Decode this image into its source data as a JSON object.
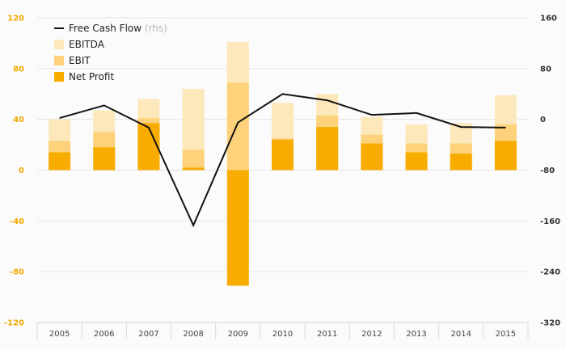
{
  "chart_data": {
    "type": "bar",
    "categories": [
      "2005",
      "2006",
      "2007",
      "2008",
      "2009",
      "2010",
      "2011",
      "2012",
      "2013",
      "2014",
      "2015"
    ],
    "series": [
      {
        "name": "EBITDA",
        "kind": "bar",
        "axis": "left",
        "color": "#fde8bb",
        "values": [
          40,
          47,
          56,
          64,
          101,
          53,
          60,
          42,
          36,
          37,
          59
        ]
      },
      {
        "name": "EBIT",
        "kind": "bar",
        "axis": "left",
        "color": "#fdd27a",
        "values": [
          23,
          30,
          41,
          16,
          69,
          25,
          43,
          28,
          21,
          21,
          36
        ]
      },
      {
        "name": "Net Profit",
        "kind": "bar",
        "axis": "left",
        "color": "#f8ac00",
        "values": [
          14,
          18,
          37,
          2,
          -91,
          24,
          34,
          21,
          14,
          13,
          23
        ]
      },
      {
        "name": "Free Cash Flow",
        "name_suffix": "(rhs)",
        "kind": "line",
        "axis": "right",
        "color": "#111111",
        "values": [
          2,
          22,
          -13,
          -167,
          -5,
          40,
          30,
          7,
          10,
          -12,
          -13
        ]
      }
    ],
    "ylim_left": [
      -120,
      120
    ],
    "yticks_left": [
      -120,
      -80,
      -40,
      0,
      40,
      80,
      120
    ],
    "ylim_right": [
      -320,
      160
    ],
    "yticks_right": [
      -320,
      -240,
      -160,
      -80,
      0,
      80,
      160
    ],
    "grid": true,
    "legend_position": "top-left"
  },
  "colors": {
    "left_axis": "#f2a900",
    "right_axis": "#333333",
    "grid": "#e6e6e6"
  }
}
